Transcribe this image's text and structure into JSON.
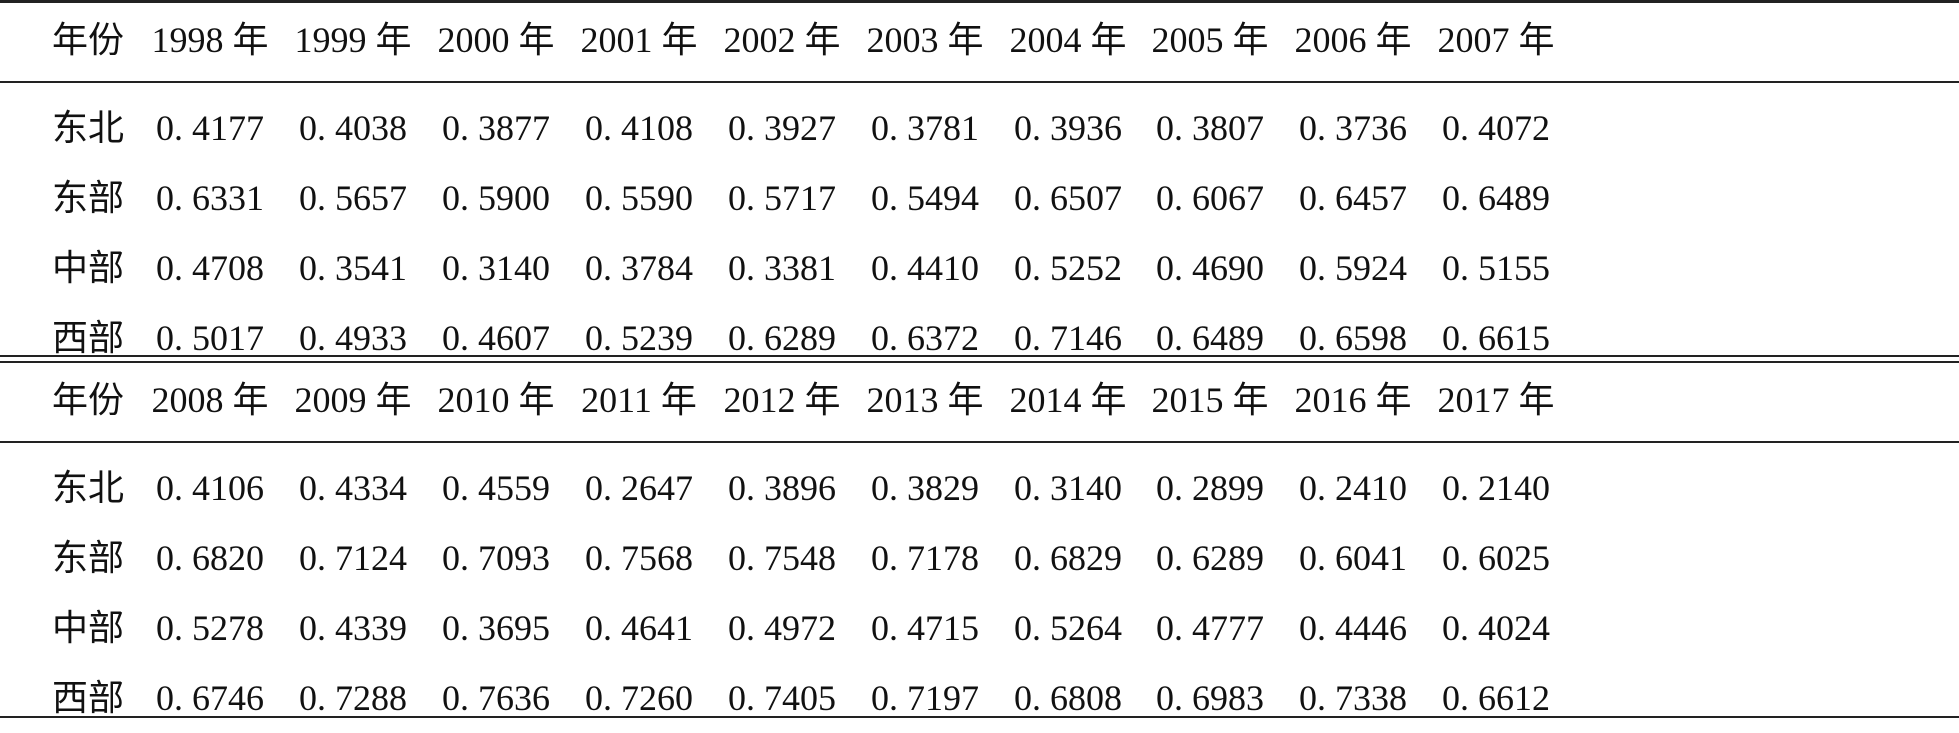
{
  "table": {
    "blocks": [
      {
        "header": [
          "年份",
          "1998 年",
          "1999 年",
          "2000 年",
          "2001 年",
          "2002 年",
          "2003 年",
          "2004 年",
          "2005 年",
          "2006 年",
          "2007 年"
        ],
        "rows": [
          [
            "东北",
            "0. 4177",
            "0. 4038",
            "0. 3877",
            "0. 4108",
            "0. 3927",
            "0. 3781",
            "0. 3936",
            "0. 3807",
            "0. 3736",
            "0. 4072"
          ],
          [
            "东部",
            "0. 6331",
            "0. 5657",
            "0. 5900",
            "0. 5590",
            "0. 5717",
            "0. 5494",
            "0. 6507",
            "0. 6067",
            "0. 6457",
            "0. 6489"
          ],
          [
            "中部",
            "0. 4708",
            "0. 3541",
            "0. 3140",
            "0. 3784",
            "0. 3381",
            "0. 4410",
            "0. 5252",
            "0. 4690",
            "0. 5924",
            "0. 5155"
          ],
          [
            "西部",
            "0. 5017",
            "0. 4933",
            "0. 4607",
            "0. 5239",
            "0. 6289",
            "0. 6372",
            "0. 7146",
            "0. 6489",
            "0. 6598",
            "0. 6615"
          ]
        ]
      },
      {
        "header": [
          "年份",
          "2008 年",
          "2009 年",
          "2010 年",
          "2011 年",
          "2012 年",
          "2013 年",
          "2014 年",
          "2015 年",
          "2016 年",
          "2017 年"
        ],
        "rows": [
          [
            "东北",
            "0. 4106",
            "0. 4334",
            "0. 4559",
            "0. 2647",
            "0. 3896",
            "0. 3829",
            "0. 3140",
            "0. 2899",
            "0. 2410",
            "0. 2140"
          ],
          [
            "东部",
            "0. 6820",
            "0. 7124",
            "0. 7093",
            "0. 7568",
            "0. 7548",
            "0. 7178",
            "0. 6829",
            "0. 6289",
            "0. 6041",
            "0. 6025"
          ],
          [
            "中部",
            "0. 5278",
            "0. 4339",
            "0. 3695",
            "0. 4641",
            "0. 4972",
            "0. 4715",
            "0. 5264",
            "0. 4777",
            "0. 4446",
            "0. 4024"
          ],
          [
            "西部",
            "0. 6746",
            "0. 7288",
            "0. 7636",
            "0. 7260",
            "0. 7405",
            "0. 7197",
            "0. 6808",
            "0. 6983",
            "0. 7338",
            "0. 6612"
          ]
        ]
      }
    ]
  }
}
